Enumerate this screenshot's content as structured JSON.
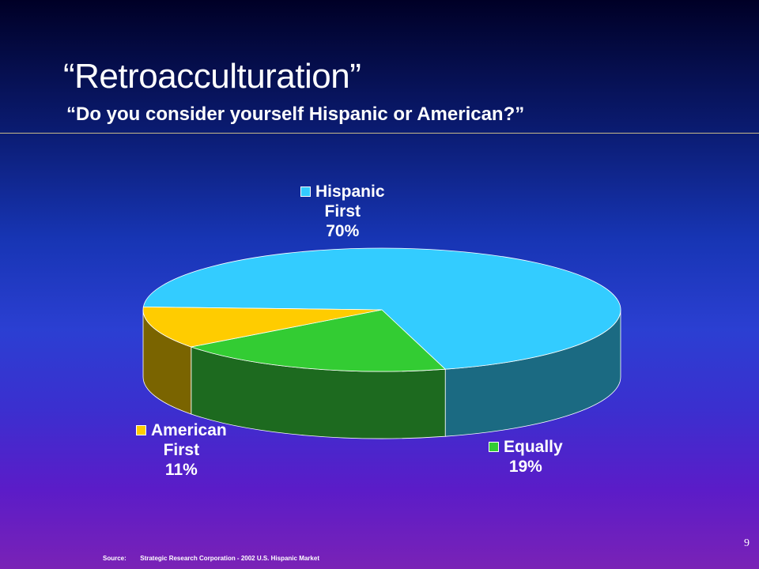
{
  "title": "“Retroacculturation”",
  "subtitle": "“Do you consider yourself Hispanic or American?”",
  "chart_data": {
    "type": "pie",
    "categories": [
      "Hispanic First",
      "Equally",
      "American First"
    ],
    "values": [
      70,
      19,
      11
    ],
    "labels": [
      {
        "line1": "Hispanic",
        "line2": "First",
        "pct": "70%"
      },
      {
        "line1": "Equally",
        "line2": "",
        "pct": "19%"
      },
      {
        "line1": "American",
        "line2": "First",
        "pct": "11%"
      }
    ],
    "colors": {
      "top": [
        "#33ccff",
        "#33cc33",
        "#ffcc00"
      ],
      "side": [
        "#1b6a82",
        "#1d6a1f",
        "#7a6400"
      ]
    },
    "style": "3d-exploded-oval"
  },
  "source_label": "Source:",
  "source_text": "Strategic Research Corporation - 2002 U.S. Hispanic Market",
  "page_number": "9"
}
